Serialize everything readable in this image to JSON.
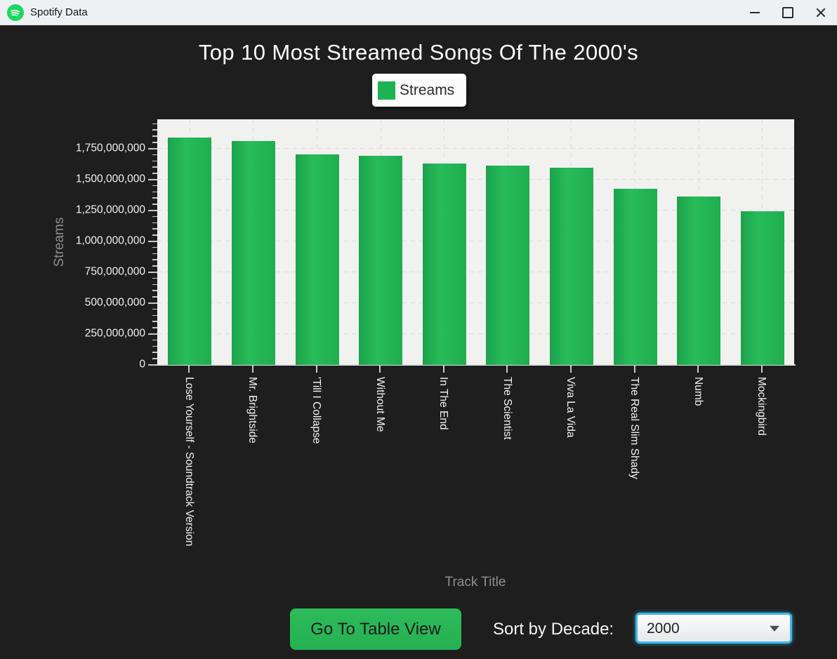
{
  "window": {
    "title": "Spotify Data"
  },
  "chart_data": {
    "type": "bar",
    "title": "Top 10 Most Streamed Songs Of The 2000's",
    "legend_label": "Streams",
    "legend_position": "top",
    "xlabel": "Track Title",
    "ylabel": "Streams",
    "categories": [
      "Lose Yourself - Soundtrack Version",
      "Mr. Brightside",
      "'Till I Collapse",
      "Without Me",
      "In The End",
      "The Scientist",
      "Viva La Vida",
      "The Real Slim Shady",
      "Numb",
      "Mockingbird"
    ],
    "values": [
      1838000000,
      1810000000,
      1702000000,
      1692000000,
      1630000000,
      1612000000,
      1595000000,
      1427000000,
      1362000000,
      1242000000
    ],
    "ylim": [
      0,
      1988000000
    ],
    "ytick_interval": 250000000,
    "yminor_interval": 50000000,
    "ytick_labels": [
      "0",
      "250,000,000",
      "500,000,000",
      "750,000,000",
      "1,000,000,000",
      "1,250,000,000",
      "1,500,000,000",
      "1,750,000,000"
    ],
    "grid": "dashed",
    "bar_color": "#1eb254"
  },
  "controls": {
    "table_button_label": "Go To Table View",
    "sort_label": "Sort by Decade:",
    "decade_value": "2000"
  },
  "colors": {
    "background": "#1e1e1e",
    "titlebar": "#eef1f4",
    "plot_background": "#f1f1f0",
    "accent_green": "#1eb254",
    "spotify_logo_green": "#1ed760",
    "combo_focus_border": "#3cb6e8",
    "axis_text": "#f2f2f2",
    "axis_title_text": "#8f8f8f"
  }
}
